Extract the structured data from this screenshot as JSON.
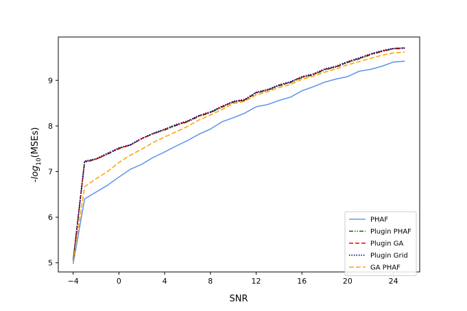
{
  "chart_data": {
    "type": "line",
    "xlabel": "SNR",
    "ylabel": "-log10(MSEs)",
    "ylabel_parts": {
      "prefix": "-",
      "fn": "log",
      "sub": "10",
      "suffix": "(MSEs)"
    },
    "xlim": [
      -5.3,
      26.3
    ],
    "ylim": [
      4.8,
      9.95
    ],
    "xticks": [
      -4,
      0,
      4,
      8,
      12,
      16,
      20,
      24
    ],
    "yticks": [
      5,
      6,
      7,
      8,
      9
    ],
    "xtick_labels": [
      "−4",
      "0",
      "4",
      "8",
      "12",
      "16",
      "20",
      "24"
    ],
    "ytick_labels": [
      "5",
      "6",
      "7",
      "8",
      "9"
    ],
    "grid": false,
    "legend_position": "lower-right",
    "x": [
      -4,
      -3,
      -2,
      -1,
      0,
      1,
      2,
      3,
      4,
      5,
      6,
      7,
      8,
      9,
      10,
      11,
      12,
      13,
      14,
      15,
      16,
      17,
      18,
      19,
      20,
      21,
      22,
      23,
      24,
      25
    ],
    "series": [
      {
        "name": "PHAF",
        "color": "#6495ed",
        "dash": "",
        "width": 1.6,
        "values": [
          4.98,
          6.4,
          6.55,
          6.7,
          6.88,
          7.05,
          7.16,
          7.31,
          7.43,
          7.56,
          7.68,
          7.82,
          7.93,
          8.09,
          8.18,
          8.28,
          8.42,
          8.47,
          8.56,
          8.63,
          8.77,
          8.86,
          8.96,
          9.03,
          9.08,
          9.2,
          9.24,
          9.31,
          9.4,
          9.42
        ]
      },
      {
        "name": "Plugin PHAF",
        "color": "#006400",
        "dash": "6 2 1.5 2 1.5 2",
        "width": 1.6,
        "values": [
          5.05,
          7.2,
          7.27,
          7.38,
          7.5,
          7.58,
          7.72,
          7.83,
          7.91,
          8.01,
          8.09,
          8.21,
          8.29,
          8.41,
          8.52,
          8.56,
          8.72,
          8.78,
          8.88,
          8.95,
          9.06,
          9.12,
          9.23,
          9.29,
          9.39,
          9.47,
          9.56,
          9.63,
          9.69,
          9.7
        ]
      },
      {
        "name": "Plugin GA",
        "color": "#e8000b",
        "dash": "6 3",
        "width": 1.6,
        "values": [
          5.05,
          7.22,
          7.27,
          7.39,
          7.51,
          7.58,
          7.72,
          7.83,
          7.92,
          8.02,
          8.1,
          8.22,
          8.3,
          8.42,
          8.53,
          8.57,
          8.73,
          8.79,
          8.89,
          8.96,
          9.07,
          9.13,
          9.24,
          9.3,
          9.4,
          9.48,
          9.57,
          9.64,
          9.7,
          9.71
        ]
      },
      {
        "name": "Plugin Grid",
        "color": "#000080",
        "dash": "1.5 2",
        "width": 1.8,
        "values": [
          5.05,
          7.23,
          7.28,
          7.4,
          7.52,
          7.59,
          7.73,
          7.84,
          7.93,
          8.03,
          8.11,
          8.23,
          8.31,
          8.43,
          8.54,
          8.58,
          8.74,
          8.8,
          8.9,
          8.97,
          9.08,
          9.14,
          9.25,
          9.31,
          9.41,
          9.49,
          9.58,
          9.65,
          9.7,
          9.71
        ]
      },
      {
        "name": "GA PHAF",
        "color": "#ffa500",
        "dash": "7 3",
        "width": 1.6,
        "values": [
          5.02,
          6.67,
          6.84,
          7.0,
          7.2,
          7.36,
          7.49,
          7.64,
          7.76,
          7.87,
          7.99,
          8.13,
          8.24,
          8.36,
          8.49,
          8.54,
          8.68,
          8.75,
          8.84,
          8.91,
          9.02,
          9.09,
          9.18,
          9.25,
          9.34,
          9.41,
          9.48,
          9.55,
          9.6,
          9.62
        ]
      }
    ]
  }
}
